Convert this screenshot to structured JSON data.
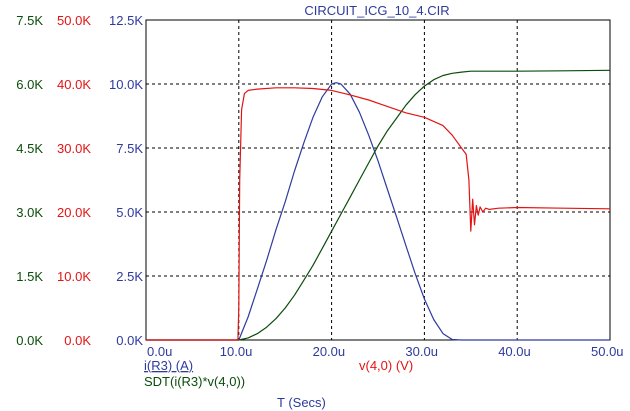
{
  "colors": {
    "green": "#0b4d0b",
    "red": "#e31414",
    "blue": "#2e3b9c",
    "grid": "#000000",
    "background": "#ffffff"
  },
  "chart_data": {
    "type": "line",
    "title": "CIRCUIT_ICG_10_4.CIR",
    "xlabel": "T (Secs)",
    "xlim": [
      0,
      50
    ],
    "x_ticks": [
      "0.0u",
      "10.0u",
      "20.0u",
      "30.0u",
      "40.0u",
      "50.0u"
    ],
    "grid": "dashed",
    "axes": [
      {
        "id": "green_axis",
        "color": "#0b4d0b",
        "ylim": [
          0,
          7.5
        ],
        "tick_labels": [
          "0.0K",
          "1.5K",
          "3.0K",
          "4.5K",
          "6.0K",
          "7.5K"
        ]
      },
      {
        "id": "red_axis",
        "color": "#e31414",
        "ylim": [
          0,
          50
        ],
        "tick_labels": [
          "0.0K",
          "10.0K",
          "20.0K",
          "30.0K",
          "40.0K",
          "50.0K"
        ]
      },
      {
        "id": "blue_axis",
        "color": "#2e3b9c",
        "ylim": [
          0,
          12.5
        ],
        "tick_labels": [
          "0.0K",
          "2.5K",
          "5.0K",
          "7.5K",
          "10.0K",
          "12.5K"
        ]
      }
    ],
    "series": [
      {
        "name": "i(R3) (A)",
        "axis": "blue_axis",
        "color": "#2e3b9c",
        "x": [
          0,
          10,
          11,
          12,
          13,
          14,
          15,
          16,
          17,
          18,
          19,
          20,
          20.5,
          21,
          22,
          23,
          24,
          25,
          26,
          27,
          28,
          29,
          30,
          31,
          32,
          33,
          34,
          35,
          36,
          40,
          45,
          50
        ],
        "y": [
          0,
          0,
          0.9,
          2.0,
          3.1,
          4.3,
          5.4,
          6.6,
          7.7,
          8.7,
          9.5,
          10.0,
          10.05,
          10.0,
          9.6,
          8.9,
          8.0,
          7.0,
          5.9,
          4.8,
          3.7,
          2.6,
          1.6,
          0.8,
          0.25,
          0.02,
          0,
          0,
          0,
          0,
          0,
          0
        ]
      },
      {
        "name": "SDT(i(R3)*v(4,0))",
        "axis": "green_axis",
        "color": "#0b4d0b",
        "x": [
          0,
          10,
          11,
          12,
          13,
          14,
          15,
          16,
          17,
          18,
          19,
          20,
          21,
          22,
          23,
          24,
          25,
          26,
          27,
          28,
          29,
          30,
          31,
          32,
          33,
          34,
          35,
          36,
          40,
          45,
          50
        ],
        "y": [
          0,
          0,
          0.05,
          0.15,
          0.3,
          0.5,
          0.75,
          1.05,
          1.4,
          1.75,
          2.15,
          2.55,
          2.95,
          3.35,
          3.75,
          4.15,
          4.55,
          4.9,
          5.2,
          5.5,
          5.75,
          5.95,
          6.1,
          6.2,
          6.25,
          6.28,
          6.3,
          6.3,
          6.3,
          6.31,
          6.32
        ]
      },
      {
        "name": "v(4,0) (V)",
        "axis": "red_axis",
        "color": "#e31414",
        "x": [
          0,
          9.9,
          10.0,
          10.1,
          10.3,
          10.6,
          11,
          12,
          14,
          16,
          18,
          20,
          22,
          24,
          26,
          28,
          30,
          32,
          33,
          34,
          34.5,
          34.8,
          35.0,
          35.2,
          35.4,
          35.6,
          35.8,
          36.0,
          36.3,
          36.6,
          37,
          38,
          40,
          45,
          50
        ],
        "y": [
          0,
          0,
          5,
          25,
          36,
          38.5,
          39.0,
          39.2,
          39.4,
          39.4,
          39.3,
          39.0,
          38.3,
          37.5,
          36.5,
          35.5,
          34.8,
          33.5,
          32.0,
          30.0,
          29.0,
          25.0,
          17.0,
          22.0,
          18.0,
          21.0,
          19.5,
          20.8,
          20.0,
          20.6,
          20.4,
          20.6,
          20.7,
          20.6,
          20.5
        ]
      }
    ]
  }
}
